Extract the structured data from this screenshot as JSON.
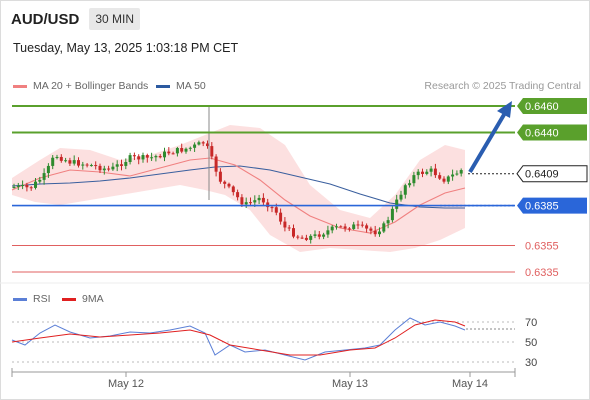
{
  "header": {
    "symbol": "AUD/USD",
    "timeframe": "30 MIN"
  },
  "datetime": "Tuesday, May 13, 2025 1:03:18 PM CET",
  "legend": {
    "ma20_label": "MA 20 + Bollinger Bands",
    "ma20_color": "#f08080",
    "ma50_label": "MA 50",
    "ma50_color": "#2c5aa0",
    "credit": "Research © 2025 Trading Central"
  },
  "rsi_legend": {
    "rsi_label": "RSI",
    "rsi_color": "#5b7fd6",
    "ma9_label": "9MA",
    "ma9_color": "#e02020"
  },
  "chart_data": [
    {
      "type": "candlestick",
      "levels": [
        {
          "value": "0.6460",
          "kind": "resistance",
          "color": "#5aa02c",
          "badge": true
        },
        {
          "value": "0.6440",
          "kind": "resistance",
          "color": "#5aa02c",
          "badge": true
        },
        {
          "value": "0.6409",
          "kind": "current",
          "color": "#222222",
          "badge": false
        },
        {
          "value": "0.6385",
          "kind": "pivot",
          "color": "#2a66d9",
          "badge": true
        },
        {
          "value": "0.6355",
          "kind": "support",
          "color": "#e06060",
          "badge": false
        },
        {
          "value": "0.6335",
          "kind": "support",
          "color": "#e06060",
          "badge": false
        }
      ],
      "x_ticks": [
        "May 12",
        "May 13",
        "May 14"
      ],
      "trend_arrow": "up",
      "ylim": [
        0.632,
        0.647
      ]
    },
    {
      "type": "line",
      "series": [
        {
          "name": "RSI"
        },
        {
          "name": "9MA"
        }
      ],
      "y_ticks": [
        "70",
        "50",
        "30"
      ],
      "ylim": [
        20,
        80
      ]
    }
  ]
}
